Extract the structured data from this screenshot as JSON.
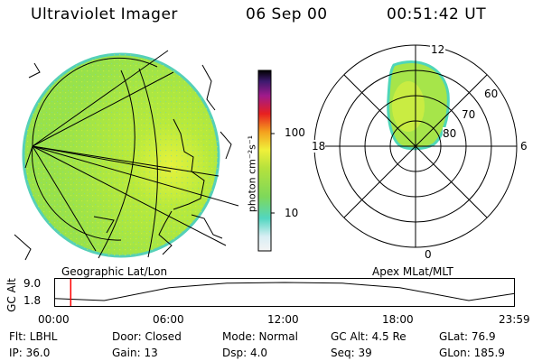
{
  "header": {
    "instrument": "Ultraviolet Imager",
    "date": "06 Sep 00",
    "time": "00:51:42 UT"
  },
  "panels": {
    "geographic_label": "Geographic Lat/Lon",
    "apex_label": "Apex  MLat/MLT"
  },
  "colorbar": {
    "title": "photon cm⁻²s⁻¹",
    "ticks": [
      "100",
      "10"
    ]
  },
  "polar_plot": {
    "mlt_labels": {
      "top": "12",
      "left": "18",
      "right": "6",
      "bottom": "0"
    },
    "mlat_labels": [
      "60",
      "70",
      "80"
    ]
  },
  "altitude_plot": {
    "ylabel": "GC Alt",
    "yticks": [
      "9.0",
      "1.8"
    ],
    "xticks": [
      "00:00",
      "06:00",
      "12:00",
      "18:00",
      "23:59"
    ],
    "marker_time": "00:51:42",
    "marker_color": "#ff0000",
    "curve_points": [
      {
        "t": 0.0,
        "alt": 2.6
      },
      {
        "t": 2.6,
        "alt": 1.8
      },
      {
        "t": 6.0,
        "alt": 6.9
      },
      {
        "t": 9.0,
        "alt": 8.7
      },
      {
        "t": 12.0,
        "alt": 9.0
      },
      {
        "t": 15.0,
        "alt": 8.7
      },
      {
        "t": 18.0,
        "alt": 6.9
      },
      {
        "t": 21.6,
        "alt": 1.8
      },
      {
        "t": 23.98,
        "alt": 4.6
      }
    ]
  },
  "status": [
    {
      "key": "flt",
      "text": "Flt: LBHL"
    },
    {
      "key": "door",
      "text": "Door: Closed"
    },
    {
      "key": "mode",
      "text": "Mode:  Normal"
    },
    {
      "key": "gcalt",
      "text": "GC Alt:  4.5 Re"
    },
    {
      "key": "glat",
      "text": "GLat:   76.9"
    },
    {
      "key": "ip",
      "text": "IP: 36.0"
    },
    {
      "key": "gain",
      "text": "Gain: 13"
    },
    {
      "key": "dsp",
      "text": "Dsp:    4.0"
    },
    {
      "key": "seq",
      "text": "Seq: 39"
    },
    {
      "key": "glon",
      "text": "GLon: 185.9"
    }
  ],
  "colors": {
    "aurora_fill": "#a6e54a",
    "aurora_edge": "#4fd6b8",
    "aurora_highlight": "#e6f23c"
  }
}
